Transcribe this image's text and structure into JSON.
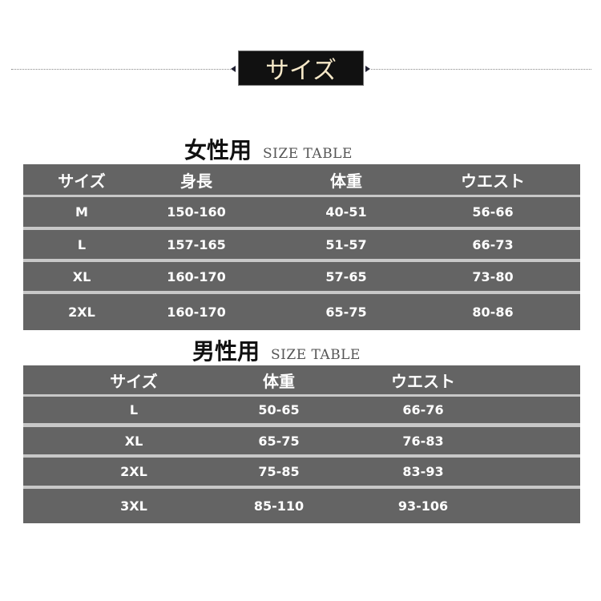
{
  "banner": {
    "title": "サイズ"
  },
  "women": {
    "title": "女性用",
    "subtitle": "SIZE TABLE",
    "headers": [
      "サイズ",
      "身長",
      "体重",
      "ウエスト"
    ],
    "rows": [
      [
        "M",
        "150-160",
        "40-51",
        "56-66"
      ],
      [
        "L",
        "157-165",
        "51-57",
        "66-73"
      ],
      [
        "XL",
        "160-170",
        "57-65",
        "73-80"
      ],
      [
        "2XL",
        "160-170",
        "65-75",
        "80-86"
      ]
    ]
  },
  "men": {
    "title": "男性用",
    "subtitle": "SIZE TABLE",
    "headers": [
      "サイズ",
      "体重",
      "ウエスト"
    ],
    "rows": [
      [
        "L",
        "50-65",
        "66-76"
      ],
      [
        "XL",
        "65-75",
        "76-83"
      ],
      [
        "2XL",
        "75-85",
        "83-93"
      ],
      [
        "3XL",
        "85-110",
        "93-106"
      ]
    ]
  },
  "colors": {
    "row_bg": "#646464",
    "banner_bg": "#111111",
    "banner_text": "#f6e8c8"
  }
}
